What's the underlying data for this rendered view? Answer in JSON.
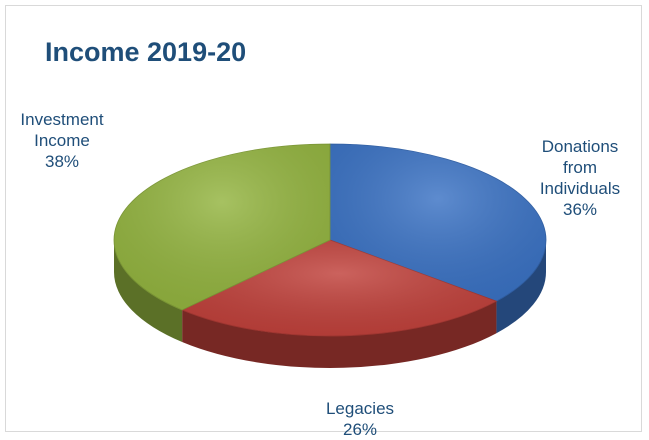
{
  "chart_data": {
    "type": "pie",
    "title": "Income 2019-20",
    "slices": [
      {
        "label": "Donations from Individuals",
        "label_lines": [
          "Donations",
          "from",
          "Individuals"
        ],
        "value": 36,
        "value_label": "36%",
        "color": "#3a72c4"
      },
      {
        "label": "Legacies",
        "label_lines": [
          "Legacies"
        ],
        "value": 26,
        "value_label": "26%",
        "color": "#c0403a"
      },
      {
        "label": "Investment Income",
        "label_lines": [
          "Investment",
          "Income"
        ],
        "value": 38,
        "value_label": "38%",
        "color": "#93b43f"
      }
    ]
  }
}
